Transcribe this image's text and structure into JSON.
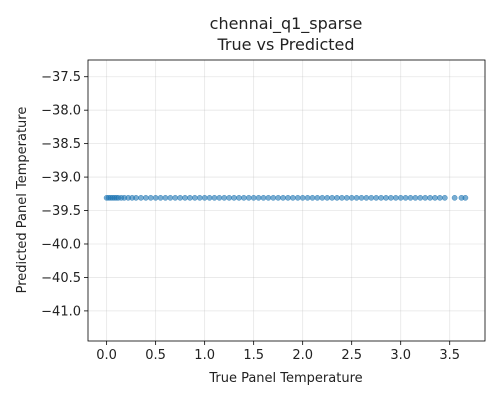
{
  "chart_data": {
    "type": "scatter",
    "title": "chennai_q1_sparse",
    "subtitle": "True vs Predicted",
    "xlabel": "True Panel Temperature",
    "ylabel": "Predicted Panel Temperature",
    "xlim": [
      -0.19,
      3.86
    ],
    "ylim": [
      -41.45,
      -37.25
    ],
    "xticks": [
      0.0,
      0.5,
      1.0,
      1.5,
      2.0,
      2.5,
      3.0,
      3.5
    ],
    "xtick_labels": [
      "0.0",
      "0.5",
      "1.0",
      "1.5",
      "2.0",
      "2.5",
      "3.0",
      "3.5"
    ],
    "yticks": [
      -37.5,
      -38.0,
      -38.5,
      -39.0,
      -39.5,
      -40.0,
      -40.5,
      -41.0
    ],
    "ytick_labels": [
      "−37.5",
      "−38.0",
      "−38.5",
      "−39.0",
      "−39.5",
      "−40.0",
      "−40.5",
      "−41.0"
    ],
    "grid": true,
    "marker_color": "#1f77b4",
    "series": [
      {
        "x": [
          0.0,
          0.02,
          0.04,
          0.06,
          0.08,
          0.1,
          0.12,
          0.15,
          0.18,
          0.22,
          0.26,
          0.3,
          0.35,
          0.4,
          0.45,
          0.5,
          0.55,
          0.6,
          0.65,
          0.7,
          0.75,
          0.8,
          0.85,
          0.9,
          0.95,
          1.0,
          1.05,
          1.1,
          1.15,
          1.2,
          1.25,
          1.3,
          1.35,
          1.4,
          1.45,
          1.5,
          1.55,
          1.6,
          1.65,
          1.7,
          1.75,
          1.8,
          1.85,
          1.9,
          1.95,
          2.0,
          2.05,
          2.1,
          2.15,
          2.2,
          2.25,
          2.3,
          2.35,
          2.4,
          2.45,
          2.5,
          2.55,
          2.6,
          2.65,
          2.7,
          2.75,
          2.8,
          2.85,
          2.9,
          2.95,
          3.0,
          3.05,
          3.1,
          3.15,
          3.2,
          3.25,
          3.3,
          3.35,
          3.4,
          3.45,
          3.55,
          3.62,
          3.66
        ],
        "y": [
          -39.31,
          -39.31,
          -39.31,
          -39.31,
          -39.31,
          -39.31,
          -39.31,
          -39.31,
          -39.31,
          -39.31,
          -39.31,
          -39.31,
          -39.31,
          -39.31,
          -39.31,
          -39.31,
          -39.31,
          -39.31,
          -39.31,
          -39.31,
          -39.31,
          -39.31,
          -39.31,
          -39.31,
          -39.31,
          -39.31,
          -39.31,
          -39.31,
          -39.31,
          -39.31,
          -39.31,
          -39.31,
          -39.31,
          -39.31,
          -39.31,
          -39.31,
          -39.31,
          -39.31,
          -39.31,
          -39.31,
          -39.31,
          -39.31,
          -39.31,
          -39.31,
          -39.31,
          -39.31,
          -39.31,
          -39.31,
          -39.31,
          -39.31,
          -39.31,
          -39.31,
          -39.31,
          -39.31,
          -39.31,
          -39.31,
          -39.31,
          -39.31,
          -39.31,
          -39.31,
          -39.31,
          -39.31,
          -39.31,
          -39.31,
          -39.31,
          -39.31,
          -39.31,
          -39.31,
          -39.31,
          -39.31,
          -39.31,
          -39.31,
          -39.31,
          -39.31,
          -39.31,
          -39.31,
          -39.31,
          -39.31
        ]
      }
    ]
  }
}
